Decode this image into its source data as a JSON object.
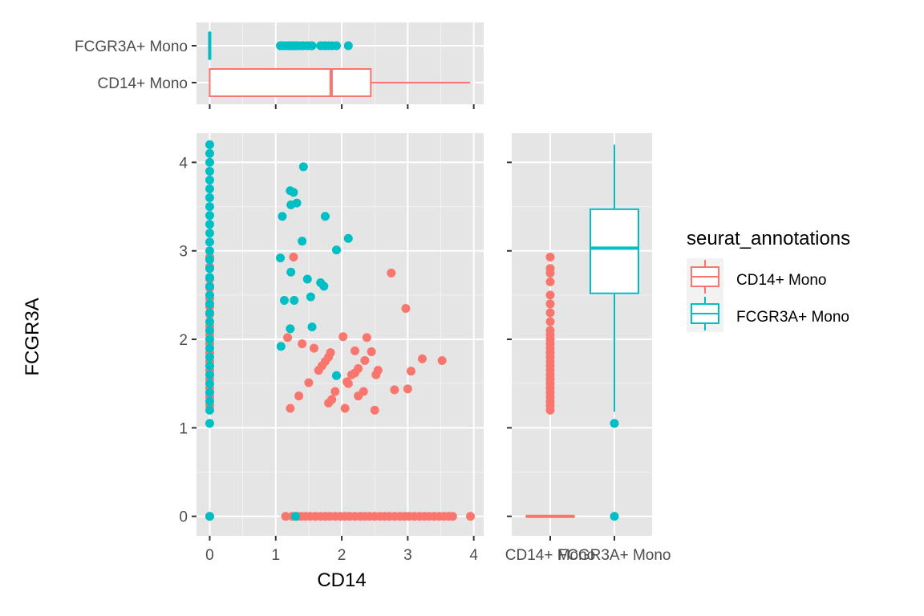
{
  "colors": {
    "cd14": "#F8766D",
    "fcgr3a": "#00BFC4"
  },
  "chart_data": {
    "type": "scatter",
    "xlabel": "CD14",
    "ylabel": "FCGR3A",
    "xlim": [
      -0.2,
      4.15
    ],
    "ylim": [
      -0.22,
      4.33
    ],
    "xticks": [
      "0",
      "1",
      "2",
      "3",
      "4"
    ],
    "yticks": [
      "0",
      "1",
      "2",
      "3",
      "4"
    ],
    "legend": {
      "title": "seurat_annotations",
      "placement": "right",
      "entries": [
        "CD14+ Mono",
        "FCGR3A+ Mono"
      ]
    },
    "series": [
      {
        "name": "CD14+ Mono",
        "color": "#F8766D",
        "points": [
          [
            1.27,
            2.93
          ],
          [
            1.18,
            2.02
          ],
          [
            1.22,
            1.22
          ],
          [
            1.35,
            1.36
          ],
          [
            1.4,
            1.95
          ],
          [
            1.5,
            1.51
          ],
          [
            1.58,
            1.9
          ],
          [
            1.65,
            1.65
          ],
          [
            1.7,
            1.7
          ],
          [
            1.75,
            1.75
          ],
          [
            1.8,
            1.8
          ],
          [
            1.83,
            1.85
          ],
          [
            1.8,
            1.28
          ],
          [
            1.85,
            1.32
          ],
          [
            1.9,
            1.41
          ],
          [
            2.02,
            2.03
          ],
          [
            2.05,
            1.22
          ],
          [
            2.08,
            1.52
          ],
          [
            2.1,
            1.5
          ],
          [
            2.15,
            1.6
          ],
          [
            2.2,
            1.62
          ],
          [
            2.25,
            1.67
          ],
          [
            2.2,
            1.87
          ],
          [
            2.25,
            1.36
          ],
          [
            2.33,
            1.41
          ],
          [
            2.35,
            1.76
          ],
          [
            2.38,
            2.02
          ],
          [
            2.45,
            1.86
          ],
          [
            2.5,
            1.2
          ],
          [
            2.52,
            1.6
          ],
          [
            2.55,
            1.65
          ],
          [
            2.75,
            2.75
          ],
          [
            2.8,
            1.43
          ],
          [
            2.97,
            2.35
          ],
          [
            3.0,
            1.44
          ],
          [
            3.05,
            1.64
          ],
          [
            3.22,
            1.78
          ],
          [
            3.52,
            1.76
          ],
          [
            0,
            2.93
          ],
          [
            0,
            2.82
          ],
          [
            0,
            2.68
          ],
          [
            0,
            2.58
          ],
          [
            0,
            2.46
          ],
          [
            0,
            2.37
          ],
          [
            0,
            2.28
          ],
          [
            0,
            2.15
          ],
          [
            0,
            2.05
          ],
          [
            0,
            1.95
          ],
          [
            0,
            1.85
          ],
          [
            0,
            1.75
          ],
          [
            0,
            1.65
          ],
          [
            0,
            1.55
          ],
          [
            0,
            1.45
          ],
          [
            0,
            1.35
          ],
          [
            0,
            1.25
          ],
          [
            0,
            0
          ],
          [
            1.15,
            0
          ],
          [
            1.25,
            0
          ],
          [
            1.32,
            0
          ],
          [
            1.38,
            0
          ],
          [
            1.45,
            0
          ],
          [
            1.52,
            0
          ],
          [
            1.6,
            0
          ],
          [
            1.68,
            0
          ],
          [
            1.75,
            0
          ],
          [
            1.82,
            0
          ],
          [
            1.9,
            0
          ],
          [
            1.98,
            0
          ],
          [
            2.05,
            0
          ],
          [
            2.12,
            0
          ],
          [
            2.2,
            0
          ],
          [
            2.28,
            0
          ],
          [
            2.35,
            0
          ],
          [
            2.42,
            0
          ],
          [
            2.5,
            0
          ],
          [
            2.58,
            0
          ],
          [
            2.65,
            0
          ],
          [
            2.72,
            0
          ],
          [
            2.8,
            0
          ],
          [
            2.88,
            0
          ],
          [
            2.95,
            0
          ],
          [
            3.02,
            0
          ],
          [
            3.1,
            0
          ],
          [
            3.18,
            0
          ],
          [
            3.25,
            0
          ],
          [
            3.32,
            0
          ],
          [
            3.4,
            0
          ],
          [
            3.48,
            0
          ],
          [
            3.55,
            0
          ],
          [
            3.62,
            0
          ],
          [
            3.68,
            0
          ],
          [
            3.95,
            0
          ]
        ]
      },
      {
        "name": "FCGR3A+ Mono",
        "color": "#00BFC4",
        "points": [
          [
            1.42,
            3.95
          ],
          [
            1.22,
            3.68
          ],
          [
            1.27,
            3.66
          ],
          [
            1.23,
            3.52
          ],
          [
            1.32,
            3.54
          ],
          [
            1.1,
            3.39
          ],
          [
            1.75,
            3.39
          ],
          [
            1.4,
            3.11
          ],
          [
            2.1,
            3.14
          ],
          [
            1.92,
            3.01
          ],
          [
            1.07,
            2.92
          ],
          [
            1.23,
            2.76
          ],
          [
            1.48,
            2.68
          ],
          [
            1.68,
            2.64
          ],
          [
            1.73,
            2.6
          ],
          [
            1.53,
            2.48
          ],
          [
            1.13,
            2.44
          ],
          [
            1.28,
            2.44
          ],
          [
            1.22,
            2.12
          ],
          [
            1.55,
            2.14
          ],
          [
            1.08,
            1.92
          ],
          [
            1.92,
            1.59
          ],
          [
            0,
            4.2
          ],
          [
            0,
            4.1
          ],
          [
            0,
            4.0
          ],
          [
            0,
            3.9
          ],
          [
            0,
            3.8
          ],
          [
            0,
            3.7
          ],
          [
            0,
            3.6
          ],
          [
            0,
            3.5
          ],
          [
            0,
            3.4
          ],
          [
            0,
            3.3
          ],
          [
            0,
            3.2
          ],
          [
            0,
            3.1
          ],
          [
            0,
            3.0
          ],
          [
            0,
            2.9
          ],
          [
            0,
            2.8
          ],
          [
            0,
            2.7
          ],
          [
            0,
            2.6
          ],
          [
            0,
            2.5
          ],
          [
            0,
            2.4
          ],
          [
            0,
            2.3
          ],
          [
            0,
            2.2
          ],
          [
            0,
            2.1
          ],
          [
            0,
            2.0
          ],
          [
            0,
            1.9
          ],
          [
            0,
            1.8
          ],
          [
            0,
            1.7
          ],
          [
            0,
            1.6
          ],
          [
            0,
            1.5
          ],
          [
            0,
            1.4
          ],
          [
            0,
            1.3
          ],
          [
            0,
            1.2
          ],
          [
            0,
            1.05
          ],
          [
            0,
            0
          ],
          [
            1.3,
            0
          ]
        ]
      }
    ],
    "top_boxplot": {
      "orientation": "horizontal",
      "value_axis": "CD14",
      "categories": [
        "FCGR3A+ Mono",
        "CD14+ Mono"
      ],
      "boxes": [
        {
          "name": "CD14+ Mono",
          "min": 0,
          "q1": 0,
          "median": 1.84,
          "q3": 2.44,
          "max": 3.95,
          "outliers": []
        },
        {
          "name": "FCGR3A+ Mono",
          "min": 0,
          "q1": 0,
          "median": 0,
          "q3": 0,
          "max": 0,
          "outliers": [
            1.07,
            1.1,
            1.13,
            1.18,
            1.22,
            1.23,
            1.27,
            1.28,
            1.3,
            1.32,
            1.35,
            1.4,
            1.42,
            1.48,
            1.53,
            1.55,
            1.68,
            1.73,
            1.75,
            1.8,
            1.85,
            1.92,
            2.1
          ]
        }
      ]
    },
    "right_boxplot": {
      "orientation": "vertical",
      "value_axis": "FCGR3A",
      "categories": [
        "CD14+ Mono",
        "FCGR3A+ Mono"
      ],
      "boxes": [
        {
          "name": "CD14+ Mono",
          "min": 0,
          "q1": 0,
          "median": 0,
          "q3": 0,
          "max": 0,
          "outliers": [
            1.2,
            1.25,
            1.3,
            1.35,
            1.4,
            1.45,
            1.5,
            1.55,
            1.6,
            1.65,
            1.7,
            1.75,
            1.8,
            1.85,
            1.9,
            1.95,
            2.0,
            2.05,
            2.1,
            2.2,
            2.3,
            2.4,
            2.5,
            2.65,
            2.75,
            2.8,
            2.93
          ]
        },
        {
          "name": "FCGR3A+ Mono",
          "min": 1.18,
          "q1": 2.52,
          "median": 3.03,
          "q3": 3.47,
          "max": 4.2,
          "outliers": [
            1.05,
            0
          ]
        }
      ]
    }
  }
}
